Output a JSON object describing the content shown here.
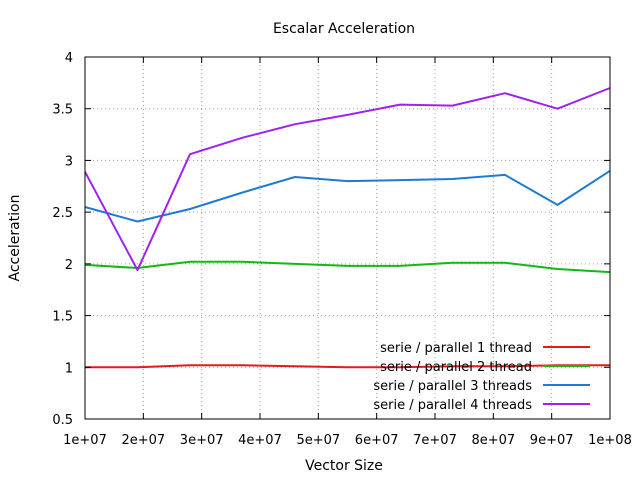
{
  "chart_data": {
    "type": "line",
    "title": "Escalar Acceleration",
    "xlabel": "Vector Size",
    "ylabel": "Acceleration",
    "xlim": [
      10000000,
      100000000
    ],
    "ylim": [
      0.5,
      4
    ],
    "grid": true,
    "legend_position": "bottom-right",
    "x_ticks": [
      "1e+07",
      "2e+07",
      "3e+07",
      "4e+07",
      "5e+07",
      "6e+07",
      "7e+07",
      "8e+07",
      "9e+07",
      "1e+08"
    ],
    "y_ticks": [
      "0.5",
      "1",
      "1.5",
      "2",
      "2.5",
      "3",
      "3.5",
      "4"
    ],
    "x": [
      10000000,
      19000000,
      28000000,
      37000000,
      46000000,
      55000000,
      64000000,
      73000000,
      82000000,
      91000000,
      100000000
    ],
    "series": [
      {
        "name": "serie / parallel 1 thread",
        "color": "#e41a1c",
        "values": [
          1.0,
          1.0,
          1.02,
          1.02,
          1.01,
          1.0,
          1.0,
          1.01,
          1.01,
          1.02,
          1.02
        ]
      },
      {
        "name": "serie / parallel 2 thread",
        "color": "#14b814",
        "values": [
          1.99,
          1.96,
          2.02,
          2.02,
          2.0,
          1.98,
          1.98,
          2.01,
          2.01,
          1.95,
          1.92
        ]
      },
      {
        "name": "serie / parallel 3 threads",
        "color": "#1f7ad4",
        "values": [
          2.55,
          2.41,
          2.53,
          2.69,
          2.84,
          2.8,
          2.81,
          2.82,
          2.86,
          2.57,
          2.9
        ]
      },
      {
        "name": "serie / parallel 4 threads",
        "color": "#a020f0",
        "values": [
          2.89,
          1.94,
          3.06,
          3.22,
          3.35,
          3.44,
          3.54,
          3.53,
          3.65,
          3.5,
          3.7
        ]
      }
    ]
  }
}
